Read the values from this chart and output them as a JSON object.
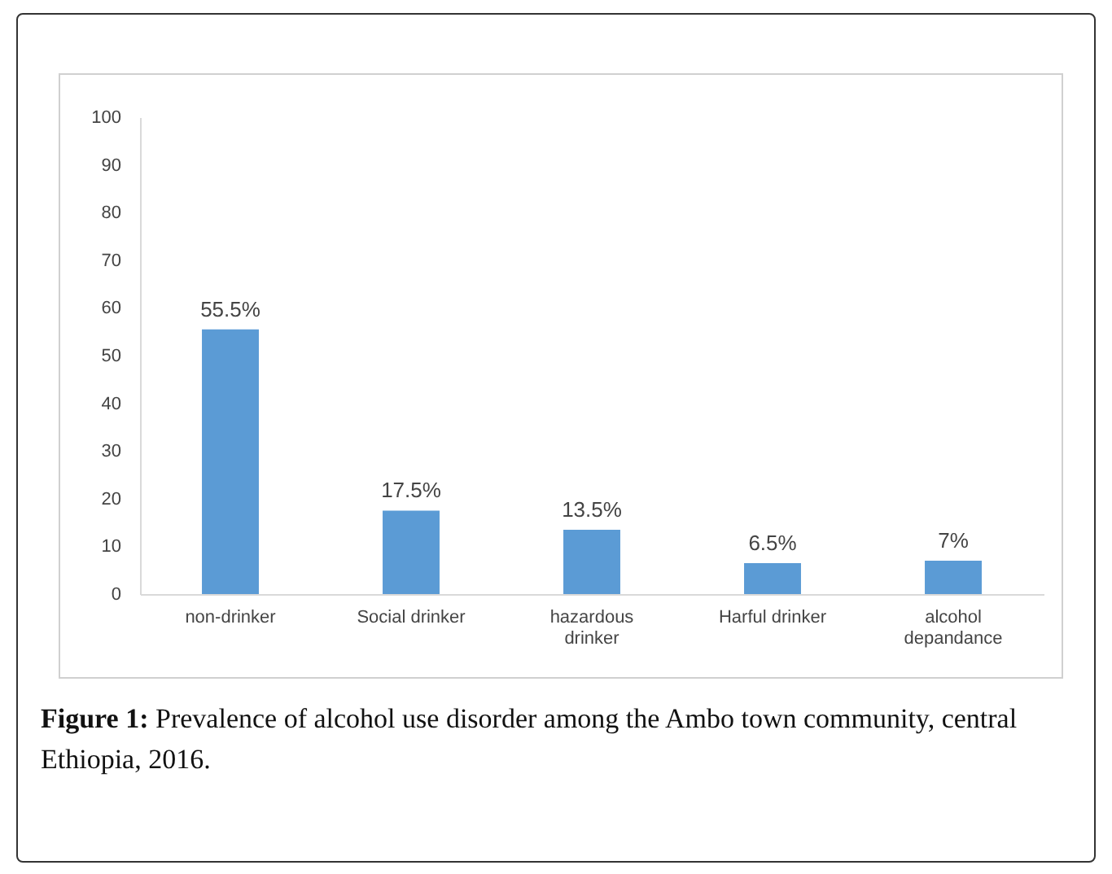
{
  "chart_data": {
    "type": "bar",
    "categories": [
      "non-drinker",
      "Social drinker",
      "hazardous drinker",
      "Harful drinker",
      "alcohol depandance"
    ],
    "values": [
      55.5,
      17.5,
      13.5,
      6.5,
      7
    ],
    "value_labels": [
      "55.5%",
      "17.5%",
      "13.5%",
      "6.5%",
      "7%"
    ],
    "color": "#5b9bd5",
    "ylim": [
      0,
      100
    ],
    "yticks": [
      0,
      10,
      20,
      30,
      40,
      50,
      60,
      70,
      80,
      90,
      100
    ],
    "grid": false,
    "annotations": [
      "Figure 1: Prevalence of alcohol use disorder among the Ambo town community, central Ethiopia, 2016."
    ]
  }
}
